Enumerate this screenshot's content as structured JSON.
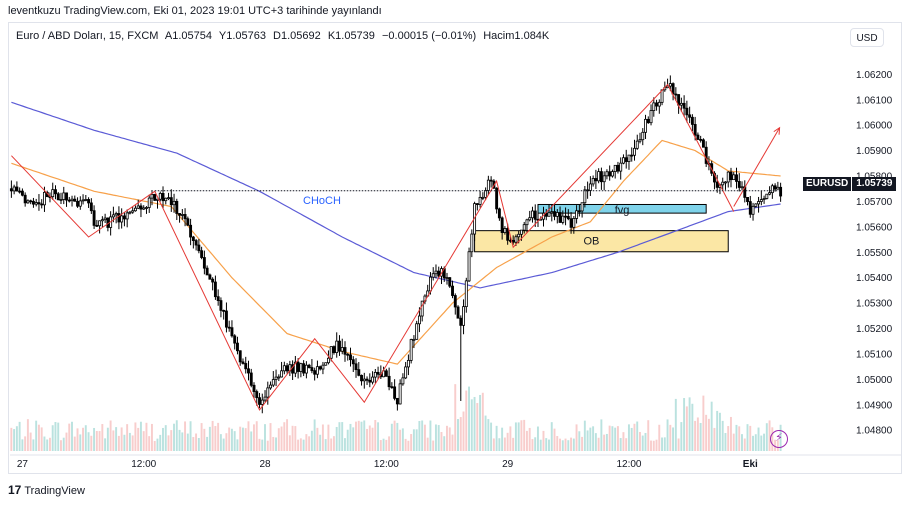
{
  "header": {
    "published": "leventkuzu TradingView.com, Eki 01, 2023 19:01 UTC+3 tarihinde yayınlandı"
  },
  "legend": {
    "symbol": "Euro / ABD Doları, 15, FXCM",
    "open": "A1.05754",
    "high": "Y1.05763",
    "low": "D1.05692",
    "close": "K1.05739",
    "change": "−0.00015 (−0.01%)",
    "volume": "Hacim1.084K"
  },
  "currency_button": "USD",
  "price_tag": {
    "symbol": "EURUSD",
    "price": "1.05739"
  },
  "footer": {
    "brand": "TradingView",
    "logo": "tv-logo-icon"
  },
  "colors": {
    "up": "#26a69a",
    "down": "#ef5350",
    "candle": "#000000",
    "ma_fast": "#f7a14a",
    "ma_slow": "#5b5bd6",
    "zigzag": "#e53935",
    "fvg": "#7fd3ea",
    "ob": "#fbe7a5",
    "choch": "#2962ff"
  },
  "chart_data": {
    "type": "candlestick",
    "symbol": "EURUSD",
    "timeframe": "15",
    "ylim": [
      1.0473,
      1.0628
    ],
    "y_ticks": [
      "1.06200",
      "1.06100",
      "1.06000",
      "1.05900",
      "1.05800",
      "1.05700",
      "1.05600",
      "1.05500",
      "1.05400",
      "1.05300",
      "1.05200",
      "1.05100",
      "1.05000",
      "1.04900",
      "1.04800"
    ],
    "x_ticks": [
      {
        "label": "27",
        "i": 4
      },
      {
        "label": "12:00",
        "i": 48
      },
      {
        "label": "28",
        "i": 92
      },
      {
        "label": "12:00",
        "i": 136
      },
      {
        "label": "29",
        "i": 180
      },
      {
        "label": "12:00",
        "i": 224
      },
      {
        "label": "Eki",
        "i": 268
      }
    ],
    "n_bars": 280,
    "close_path": [
      [
        0,
        1.0575
      ],
      [
        10,
        1.0568
      ],
      [
        13,
        1.0574
      ],
      [
        28,
        1.0569
      ],
      [
        30,
        1.056
      ],
      [
        45,
        1.0566
      ],
      [
        52,
        1.0572
      ],
      [
        58,
        1.057
      ],
      [
        63,
        1.0562
      ],
      [
        70,
        1.0546
      ],
      [
        76,
        1.0528
      ],
      [
        83,
        1.0508
      ],
      [
        90,
        1.049
      ],
      [
        96,
        1.0502
      ],
      [
        103,
        1.0505
      ],
      [
        110,
        1.0503
      ],
      [
        118,
        1.0514
      ],
      [
        121,
        1.051
      ],
      [
        128,
        1.0498
      ],
      [
        134,
        1.0503
      ],
      [
        140,
        1.0492
      ],
      [
        146,
        1.0518
      ],
      [
        152,
        1.054
      ],
      [
        158,
        1.0542
      ],
      [
        163,
        1.052
      ],
      [
        168,
        1.0568
      ],
      [
        174,
        1.0578
      ],
      [
        178,
        1.056
      ],
      [
        182,
        1.0553
      ],
      [
        189,
        1.0564
      ],
      [
        196,
        1.0566
      ],
      [
        203,
        1.0561
      ],
      [
        210,
        1.0578
      ],
      [
        218,
        1.0582
      ],
      [
        226,
        1.059
      ],
      [
        233,
        1.0608
      ],
      [
        238,
        1.0616
      ],
      [
        244,
        1.0606
      ],
      [
        251,
        1.059
      ],
      [
        256,
        1.0574
      ],
      [
        262,
        1.0582
      ],
      [
        268,
        1.0566
      ],
      [
        272,
        1.0572
      ],
      [
        276,
        1.0574
      ],
      [
        279,
        1.0574
      ]
    ],
    "ma_fast": [
      [
        0,
        1.0585
      ],
      [
        30,
        1.0574
      ],
      [
        58,
        1.0568
      ],
      [
        80,
        1.054
      ],
      [
        100,
        1.0518
      ],
      [
        120,
        1.0511
      ],
      [
        140,
        1.0506
      ],
      [
        160,
        1.053
      ],
      [
        176,
        1.0544
      ],
      [
        196,
        1.0556
      ],
      [
        210,
        1.0562
      ],
      [
        222,
        1.0578
      ],
      [
        236,
        1.0594
      ],
      [
        248,
        1.059
      ],
      [
        260,
        1.0582
      ],
      [
        279,
        1.058
      ]
    ],
    "ma_slow": [
      [
        0,
        1.0609
      ],
      [
        30,
        1.0598
      ],
      [
        60,
        1.0589
      ],
      [
        90,
        1.0574
      ],
      [
        120,
        1.0556
      ],
      [
        146,
        1.0542
      ],
      [
        170,
        1.0536
      ],
      [
        196,
        1.0542
      ],
      [
        220,
        1.055
      ],
      [
        240,
        1.0558
      ],
      [
        260,
        1.0566
      ],
      [
        279,
        1.0569
      ]
    ],
    "zigzag": [
      [
        0,
        1.0588
      ],
      [
        28,
        1.0556
      ],
      [
        52,
        1.0574
      ],
      [
        90,
        1.0488
      ],
      [
        110,
        1.0516
      ],
      [
        128,
        1.0491
      ],
      [
        176,
        1.0578
      ],
      [
        182,
        1.0552
      ],
      [
        238,
        1.0616
      ],
      [
        262,
        1.0566
      ]
    ],
    "zigzag_arrow": {
      "from": [
        262,
        1.0568
      ],
      "to": [
        275,
        1.0599
      ]
    },
    "choch": {
      "label": "CHoCH",
      "y": 1.05742,
      "i_start": 52,
      "i_end": 279
    },
    "fvg": {
      "label": "fvg",
      "i_start": 191,
      "i_end": 252,
      "y_top": 1.05688,
      "y_bottom": 1.05654
    },
    "ob": {
      "label": "OB",
      "i_start": 168,
      "i_end": 260,
      "y_top": 1.05585,
      "y_bottom": 1.05502
    }
  }
}
